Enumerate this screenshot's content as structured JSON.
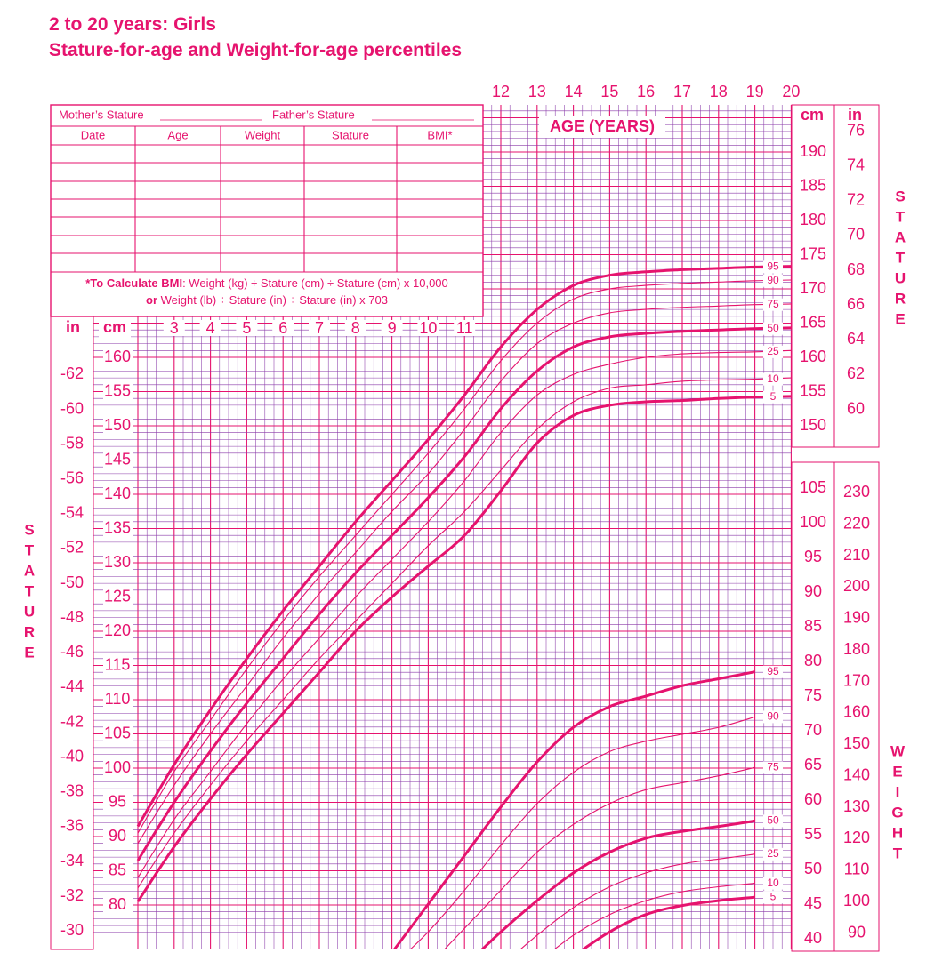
{
  "title_line1": "2 to 20 years: Girls",
  "title_line2": "Stature-for-age and Weight-for-age percentiles",
  "colors": {
    "accent": "#e6136e",
    "grid_minor": "#8a3aa8",
    "grid_major": "#e6136e",
    "background": "#ffffff"
  },
  "record_table": {
    "mother_label": "Mother’s Stature",
    "father_label": "Father’s Stature",
    "headers": [
      "Date",
      "Age",
      "Weight",
      "Stature",
      "BMI*"
    ],
    "empty_rows": 7,
    "bmi_note_bold1": "*To Calculate BMI",
    "bmi_note_line1": ": Weight (kg) ÷ Stature (cm) ÷ Stature (cm) x 10,000",
    "bmi_note_bold2": "or",
    "bmi_note_line2": " Weight (lb) ÷ Stature (in) ÷ Stature (in) x 703"
  },
  "side_labels": {
    "stature_letters": [
      "S",
      "T",
      "A",
      "T",
      "U",
      "R",
      "E"
    ],
    "weight_letters": [
      "W",
      "E",
      "I",
      "G",
      "H",
      "T"
    ]
  },
  "chart_data": {
    "type": "line",
    "title": "2 to 20 years: Girls — Stature-for-age and Weight-for-age percentiles",
    "xlabel": "AGE (YEARS)",
    "grid": true,
    "x_range": [
      2,
      20
    ],
    "x_ticks_top": [
      12,
      13,
      14,
      15,
      16,
      17,
      18,
      19,
      20
    ],
    "x_ticks_inner": [
      3,
      4,
      5,
      6,
      7,
      8,
      9,
      10,
      11
    ],
    "unit_labels": {
      "cm": "cm",
      "in": "in"
    },
    "stature_axis": {
      "label": "STATURE",
      "visible_range_cm": [
        76.5,
        196
      ],
      "left_cm_ticks": [
        80,
        85,
        90,
        95,
        100,
        105,
        110,
        115,
        120,
        125,
        130,
        135,
        140,
        145,
        150,
        155,
        160
      ],
      "left_in_ticks": [
        30,
        32,
        34,
        36,
        38,
        40,
        42,
        44,
        46,
        48,
        50,
        52,
        54,
        56,
        58,
        60,
        62
      ],
      "right_cm_ticks": [
        150,
        155,
        160,
        165,
        170,
        175,
        180,
        185,
        190
      ],
      "right_in_ticks": [
        60,
        62,
        64,
        66,
        68,
        70,
        72,
        74,
        76
      ]
    },
    "weight_axis": {
      "label": "WEIGHT",
      "visible_range_kg": [
        38,
        112
      ],
      "kg_ticks": [
        40,
        45,
        50,
        55,
        60,
        65,
        70,
        75,
        80,
        85,
        90,
        95,
        100,
        105
      ],
      "lb_ticks": [
        90,
        100,
        110,
        120,
        130,
        140,
        150,
        160,
        170,
        180,
        190,
        200,
        210,
        220,
        230
      ]
    },
    "stature_series": [
      {
        "name": "5",
        "bold": true,
        "x": [
          2,
          3,
          4,
          5,
          6,
          7,
          8,
          9,
          10,
          11,
          12,
          13,
          14,
          15,
          16,
          17,
          18,
          19,
          20
        ],
        "y": [
          80.5,
          88.5,
          95.5,
          102,
          108,
          114,
          120,
          125,
          129.5,
          134,
          140.5,
          147.5,
          151.5,
          153,
          153.5,
          153.7,
          154,
          154.2,
          154.3
        ]
      },
      {
        "name": "10",
        "bold": false,
        "x": [
          2,
          3,
          4,
          5,
          6,
          7,
          8,
          9,
          10,
          11,
          12,
          13,
          14,
          15,
          16,
          17,
          18,
          19,
          20
        ],
        "y": [
          82.5,
          90.5,
          97.5,
          104,
          110,
          116,
          121.5,
          127,
          132.5,
          137.5,
          143.5,
          149.5,
          153.5,
          155.5,
          156,
          156.5,
          156.7,
          156.8,
          157
        ]
      },
      {
        "name": "25",
        "bold": false,
        "x": [
          2,
          3,
          4,
          5,
          6,
          7,
          8,
          9,
          10,
          11,
          12,
          13,
          14,
          15,
          16,
          17,
          18,
          19,
          20
        ],
        "y": [
          84,
          92.5,
          99.5,
          106.5,
          113,
          119,
          125,
          130.5,
          136,
          142,
          149,
          154.5,
          157.5,
          159,
          160,
          160.5,
          160.7,
          160.8,
          161
        ]
      },
      {
        "name": "50",
        "bold": true,
        "x": [
          2,
          3,
          4,
          5,
          6,
          7,
          8,
          9,
          10,
          11,
          12,
          13,
          14,
          15,
          16,
          17,
          18,
          19,
          20
        ],
        "y": [
          86.5,
          95,
          102.5,
          109.5,
          116,
          122.5,
          128.5,
          134,
          139.5,
          145.5,
          152.5,
          158,
          161.5,
          163,
          163.5,
          163.8,
          164,
          164.2,
          164.3
        ]
      },
      {
        "name": "75",
        "bold": false,
        "x": [
          2,
          3,
          4,
          5,
          6,
          7,
          8,
          9,
          10,
          11,
          12,
          13,
          14,
          15,
          16,
          17,
          18,
          19,
          20
        ],
        "y": [
          89,
          97.5,
          105,
          112,
          119,
          125.5,
          131.5,
          137.5,
          143,
          149.5,
          156.5,
          162,
          165,
          166.5,
          167,
          167.3,
          167.5,
          167.7,
          167.8
        ]
      },
      {
        "name": "90",
        "bold": false,
        "x": [
          2,
          3,
          4,
          5,
          6,
          7,
          8,
          9,
          10,
          11,
          12,
          13,
          14,
          15,
          16,
          17,
          18,
          19,
          20
        ],
        "y": [
          90.5,
          99.5,
          107,
          114.5,
          121.5,
          128,
          134,
          140,
          146,
          152.5,
          159.5,
          165,
          168.5,
          170,
          170.5,
          170.8,
          171,
          171.2,
          171.3
        ]
      },
      {
        "name": "95",
        "bold": true,
        "x": [
          2,
          3,
          4,
          5,
          6,
          7,
          8,
          9,
          10,
          11,
          12,
          13,
          14,
          15,
          16,
          17,
          18,
          19,
          20
        ],
        "y": [
          91.5,
          100.5,
          108.5,
          116,
          123,
          129.5,
          136,
          142,
          148,
          154.5,
          161.5,
          167,
          170.5,
          172,
          172.5,
          172.8,
          173,
          173.2,
          173.3
        ]
      }
    ],
    "weight_series": [
      {
        "name": "5",
        "bold": true,
        "x": [
          14,
          15,
          16,
          17,
          18,
          19
        ],
        "y": [
          37.5,
          41,
          43.5,
          44.8,
          45.5,
          46
        ]
      },
      {
        "name": "10",
        "bold": false,
        "x": [
          13,
          14,
          15,
          16,
          17,
          18,
          19
        ],
        "y": [
          36.5,
          40.5,
          43.5,
          45.5,
          46.8,
          47.5,
          48
        ]
      },
      {
        "name": "25",
        "bold": false,
        "x": [
          12,
          13,
          14,
          15,
          16,
          17,
          18,
          19
        ],
        "y": [
          36,
          40.5,
          44.5,
          47.5,
          49.5,
          50.8,
          51.5,
          52.2
        ]
      },
      {
        "name": "50",
        "bold": true,
        "x": [
          11,
          12,
          13,
          14,
          15,
          16,
          17,
          18,
          19
        ],
        "y": [
          36,
          41,
          45.5,
          49.5,
          52.5,
          54.5,
          55.5,
          56.2,
          57
        ]
      },
      {
        "name": "75",
        "bold": false,
        "x": [
          10,
          11,
          12,
          13,
          14,
          15,
          16,
          17,
          18,
          19
        ],
        "y": [
          36,
          41.5,
          47,
          52.5,
          56.5,
          59.5,
          61.5,
          62.5,
          63.5,
          64.7
        ]
      },
      {
        "name": "90",
        "bold": false,
        "x": [
          9,
          10,
          11,
          12,
          13,
          14,
          15,
          16,
          17,
          18,
          19
        ],
        "y": [
          36,
          41,
          47,
          53.5,
          59.5,
          64,
          67,
          68.5,
          69.5,
          70.5,
          72
        ]
      },
      {
        "name": "95",
        "bold": true,
        "x": [
          9,
          10,
          11,
          12,
          13,
          14,
          15,
          16,
          17,
          18,
          19
        ],
        "y": [
          38,
          45,
          52,
          59,
          65.5,
          70.5,
          73.5,
          75,
          76.5,
          77.5,
          78.5
        ]
      }
    ]
  }
}
